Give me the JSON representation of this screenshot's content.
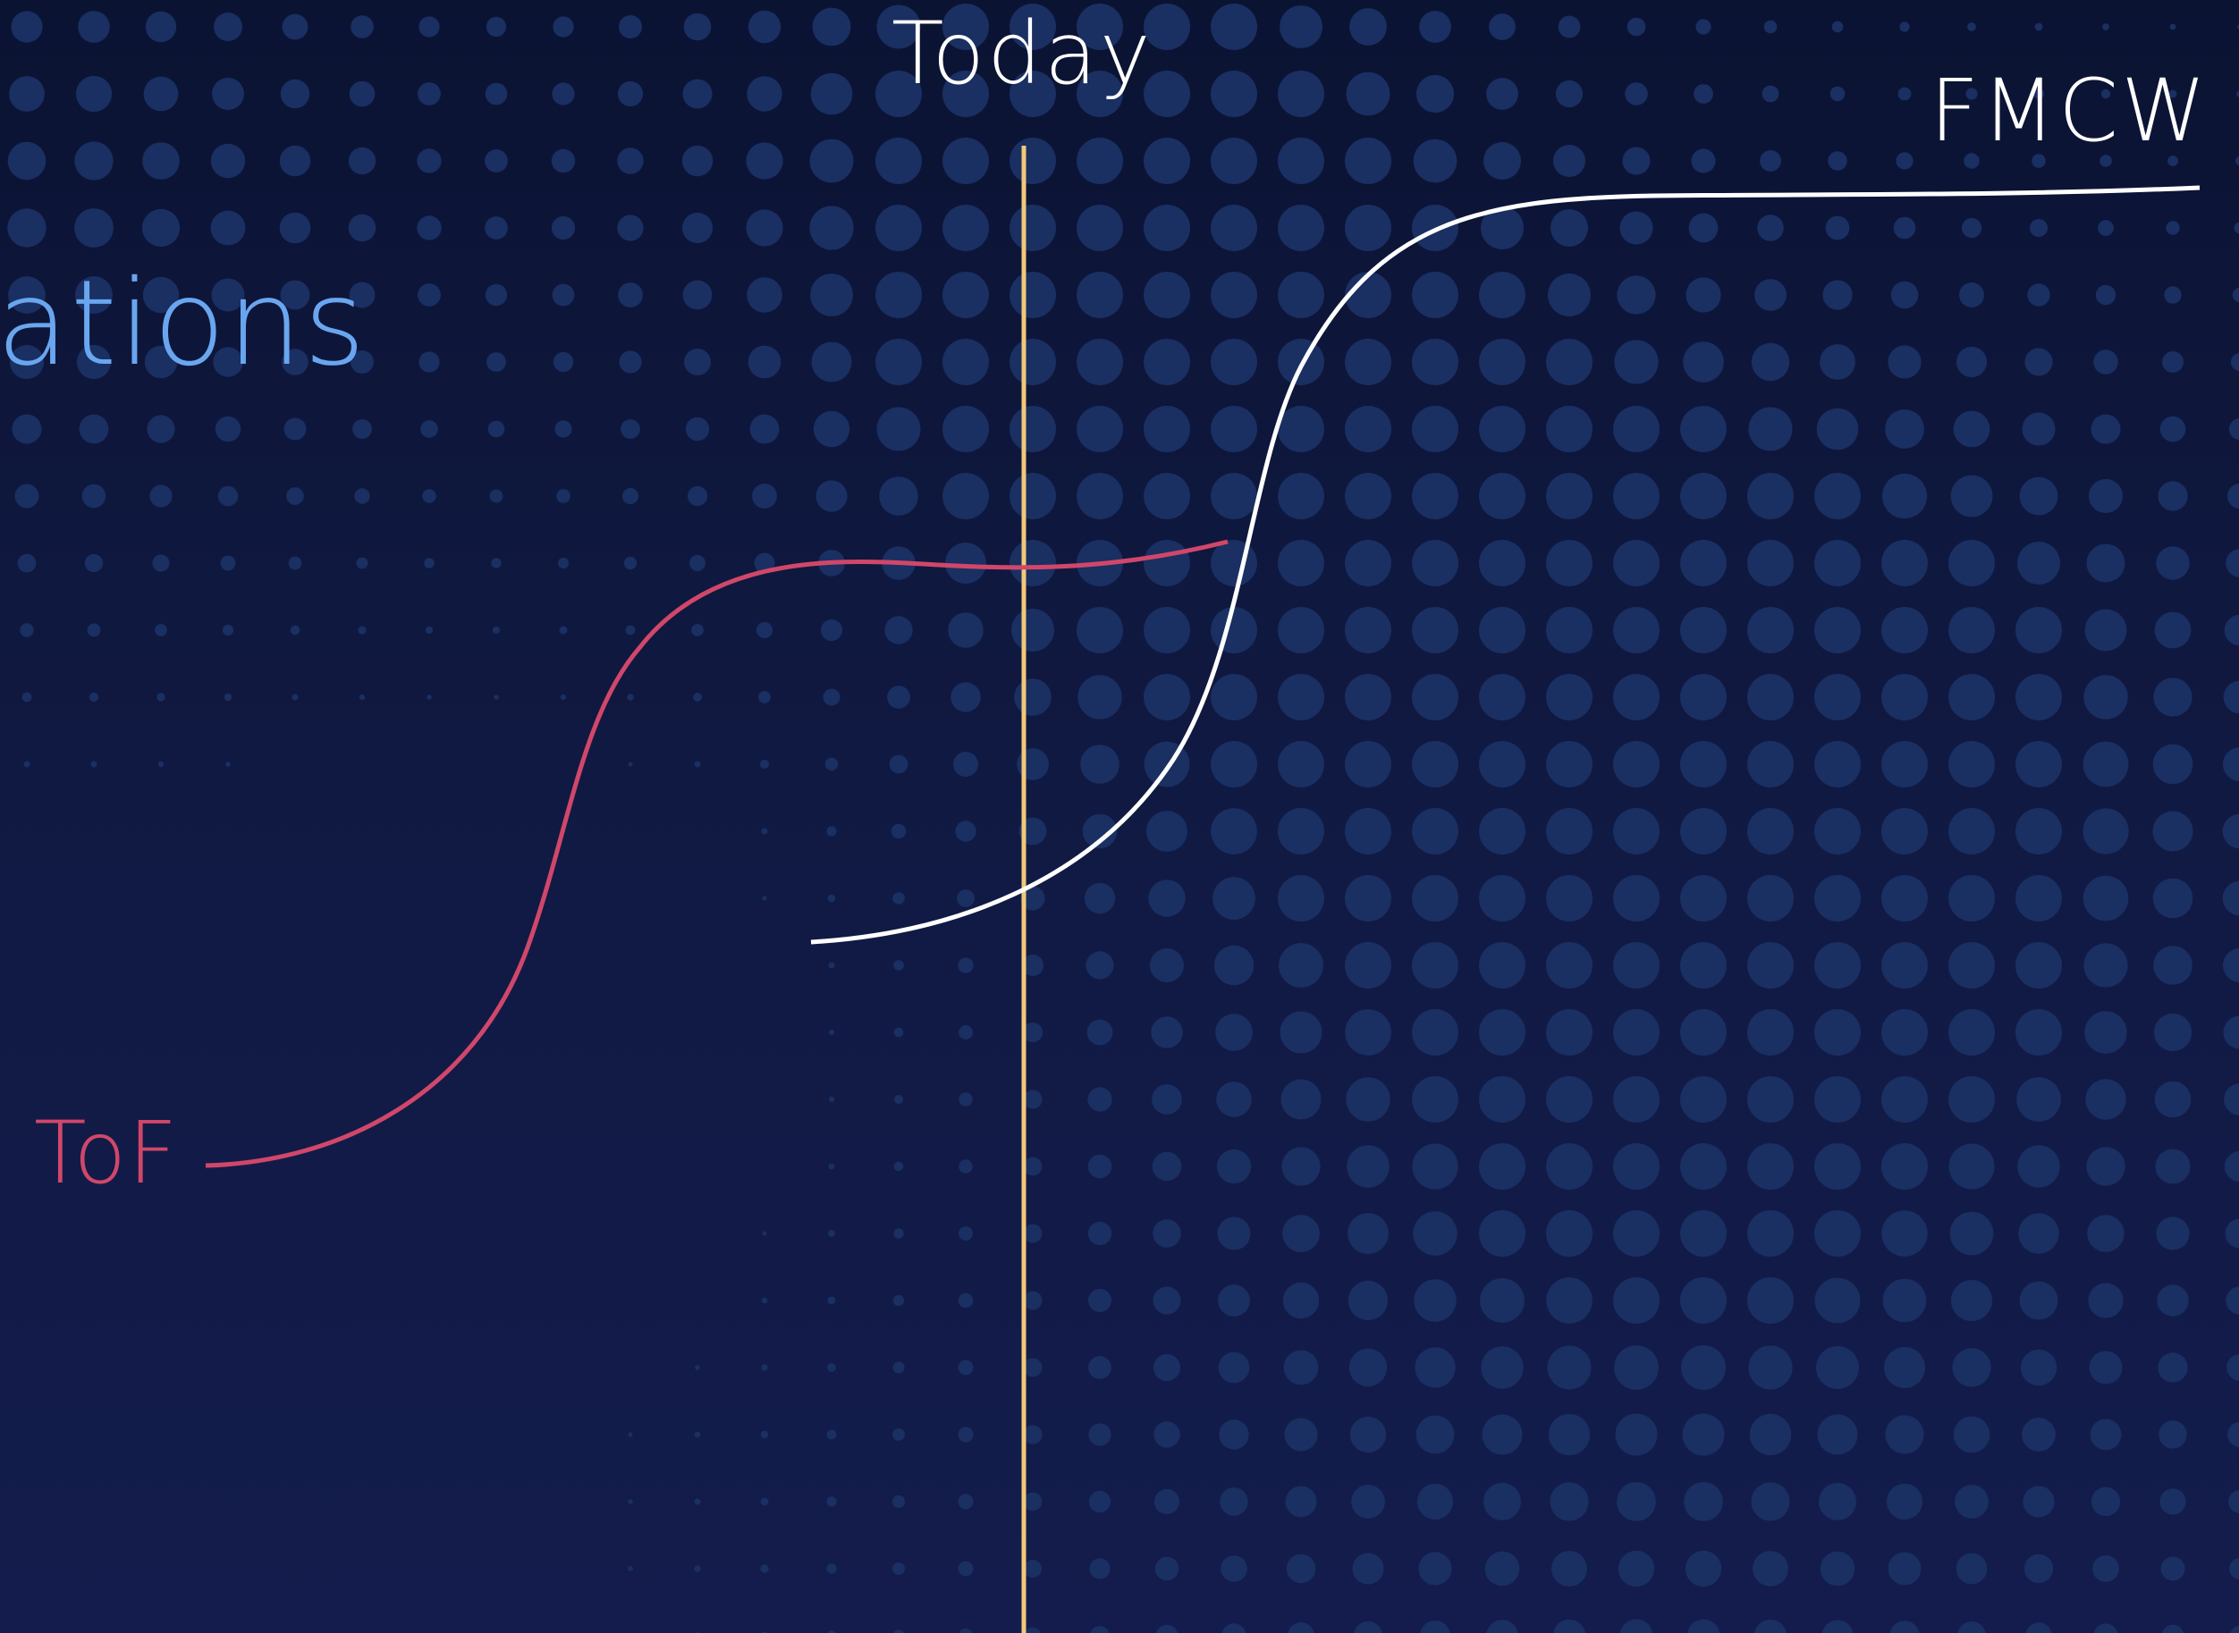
{
  "title_fragment": "ations",
  "marker": {
    "label": "Today",
    "color": "#f2c879"
  },
  "curves": [
    {
      "id": "tof",
      "label": "ToF",
      "color": "#d0476a"
    },
    {
      "id": "fmcw",
      "label": "FMCW",
      "color": "#ffffff"
    }
  ],
  "colors": {
    "background": "#0d1538",
    "title": "#69a6ef",
    "dots": "#1a2f62",
    "label_text": "#ffffff"
  }
}
